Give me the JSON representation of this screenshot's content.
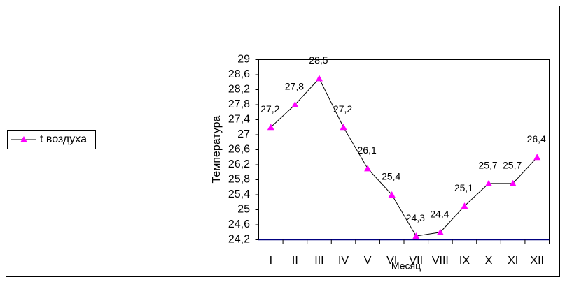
{
  "chart_data": {
    "type": "line",
    "x_label": "Месяц",
    "y_label": "Температура",
    "categories": [
      "I",
      "II",
      "III",
      "IV",
      "V",
      "VI",
      "VII",
      "VIII",
      "IX",
      "X",
      "XI",
      "XII"
    ],
    "series": [
      {
        "name": "t воздуха",
        "color": "#ff00ff",
        "values": [
          27.2,
          27.8,
          28.5,
          27.2,
          26.1,
          25.4,
          24.3,
          24.4,
          25.1,
          25.7,
          25.7,
          26.4
        ],
        "value_labels": [
          "27,2",
          "27,8",
          "28,5",
          "27,2",
          "26,1",
          "25,4",
          "24,3",
          "24,4",
          "25,1",
          "25,7",
          "25,7",
          "26,4"
        ]
      }
    ],
    "ylim": [
      24.2,
      29
    ],
    "yticks": [
      {
        "value": 24.2,
        "label": "24,2"
      },
      {
        "value": 24.6,
        "label": "24,6"
      },
      25,
      {
        "value": 25.4,
        "label": "25,4"
      },
      {
        "value": 25.8,
        "label": "25,8"
      },
      {
        "value": 26.2,
        "label": "26,2"
      },
      {
        "value": 26.6,
        "label": "26,6"
      },
      27,
      {
        "value": 27.4,
        "label": "27,4"
      },
      {
        "value": 27.8,
        "label": "27,8"
      },
      {
        "value": 28.2,
        "label": "28,2"
      },
      {
        "value": 28.6,
        "label": "28,6"
      },
      29
    ],
    "legend": "left"
  }
}
